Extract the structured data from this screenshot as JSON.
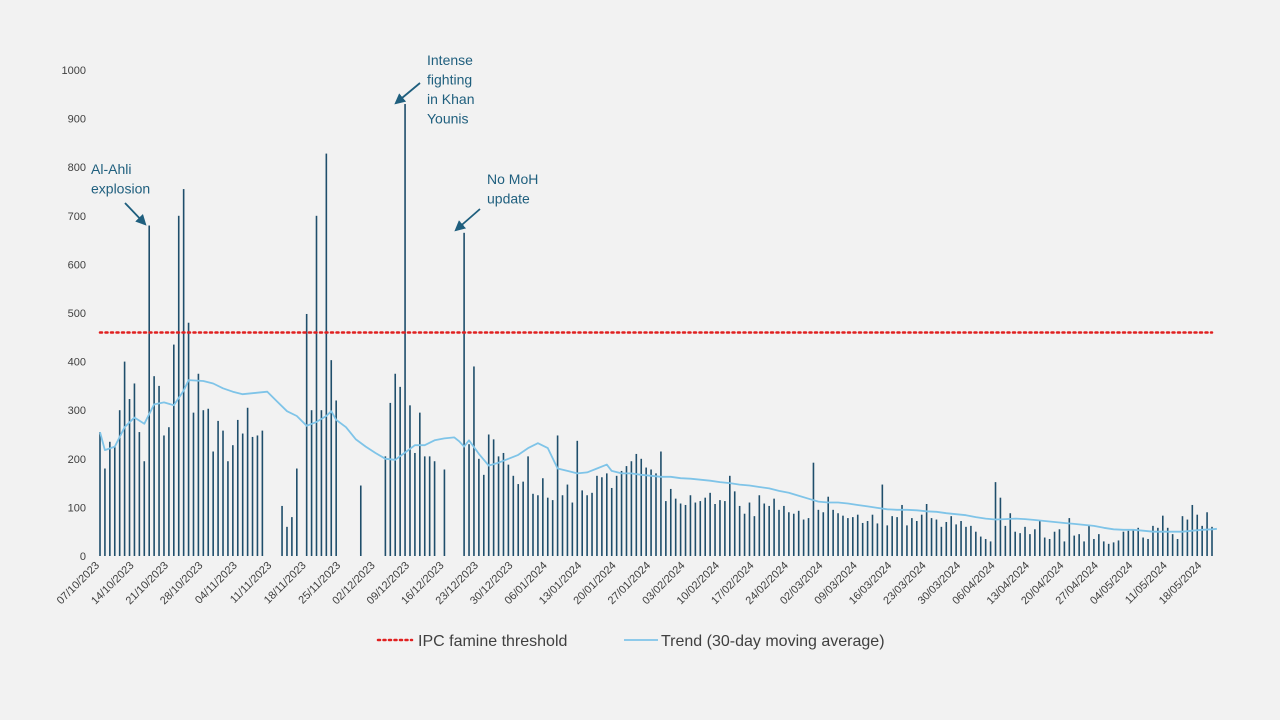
{
  "chart_data": {
    "type": "bar",
    "title": "",
    "xlabel": "",
    "ylabel": "",
    "ylim": [
      0,
      1000
    ],
    "yticks": [
      0,
      100,
      200,
      300,
      400,
      500,
      600,
      700,
      800,
      900,
      1000
    ],
    "x_start": "07/10/2023",
    "x_end": "24/05/2024",
    "x_tick_labels": [
      "07/10/2023",
      "14/10/2023",
      "21/10/2023",
      "28/10/2023",
      "04/11/2023",
      "11/11/2023",
      "18/11/2023",
      "25/11/2023",
      "02/12/2023",
      "09/12/2023",
      "16/12/2023",
      "23/12/2023",
      "30/12/2023",
      "06/01/2024",
      "13/01/2024",
      "20/01/2024",
      "27/01/2024",
      "03/02/2024",
      "10/02/2024",
      "17/02/2024",
      "24/02/2024",
      "02/03/2024",
      "09/03/2024",
      "16/03/2024",
      "23/03/2024",
      "30/03/2024",
      "06/04/2024",
      "13/04/2024",
      "20/04/2024",
      "27/04/2024",
      "04/05/2024",
      "11/05/2024",
      "18/05/2024"
    ],
    "bar_color": "#1f4e6b",
    "daily_values": [
      255,
      180,
      235,
      225,
      300,
      400,
      323,
      355,
      255,
      195,
      680,
      370,
      350,
      248,
      265,
      435,
      700,
      755,
      480,
      295,
      375,
      300,
      303,
      215,
      278,
      258,
      195,
      228,
      280,
      252,
      305,
      245,
      248,
      258,
      null,
      null,
      null,
      103,
      60,
      80,
      180,
      null,
      498,
      300,
      700,
      300,
      828,
      403,
      320,
      null,
      null,
      null,
      null,
      145,
      null,
      null,
      null,
      null,
      205,
      315,
      375,
      348,
      930,
      310,
      212,
      295,
      205,
      205,
      195,
      null,
      178,
      null,
      null,
      null,
      665,
      230,
      390,
      200,
      167,
      250,
      240,
      205,
      212,
      188,
      165,
      148,
      153,
      205,
      128,
      125,
      160,
      120,
      115,
      248,
      125,
      147,
      110,
      237,
      135,
      125,
      130,
      165,
      162,
      170,
      140,
      165,
      175,
      185,
      195,
      210,
      200,
      182,
      178,
      170,
      215,
      113,
      138,
      118,
      108,
      105,
      125,
      110,
      113,
      120,
      130,
      107,
      115,
      113,
      165,
      133,
      103,
      87,
      110,
      82,
      125,
      108,
      103,
      118,
      95,
      103,
      90,
      87,
      93,
      75,
      78,
      192,
      95,
      90,
      122,
      95,
      88,
      83,
      78,
      80,
      85,
      68,
      72,
      85,
      67,
      147,
      63,
      82,
      80,
      105,
      63,
      78,
      72,
      85,
      107,
      78,
      75,
      60,
      70,
      82,
      65,
      72,
      60,
      62,
      50,
      40,
      35,
      30,
      152,
      120,
      62,
      88,
      50,
      47,
      60,
      45,
      55,
      72,
      38,
      35,
      50,
      55,
      30,
      78,
      42,
      45,
      30,
      63,
      35,
      45,
      30,
      25,
      28,
      32,
      50,
      52,
      55,
      58,
      38,
      35,
      62,
      58,
      83,
      58,
      45,
      35,
      82,
      75,
      105,
      85,
      62,
      90,
      60
    ],
    "series": [
      {
        "name": "IPC famine threshold",
        "type": "line",
        "style": "dotted",
        "color": "#e02020",
        "value": 460
      },
      {
        "name": "Trend (30-day moving average)",
        "type": "line",
        "color": "#7fc4e8",
        "points": [
          [
            0,
            255
          ],
          [
            1,
            218
          ],
          [
            3,
            225
          ],
          [
            5,
            265
          ],
          [
            7,
            285
          ],
          [
            9,
            272
          ],
          [
            11,
            312
          ],
          [
            13,
            316
          ],
          [
            15,
            310
          ],
          [
            17,
            340
          ],
          [
            18,
            362
          ],
          [
            21,
            360
          ],
          [
            23,
            355
          ],
          [
            25,
            345
          ],
          [
            27,
            338
          ],
          [
            29,
            333
          ],
          [
            32,
            336
          ],
          [
            34,
            338
          ],
          [
            36,
            318
          ],
          [
            38,
            298
          ],
          [
            40,
            288
          ],
          [
            42,
            268
          ],
          [
            44,
            276
          ],
          [
            46,
            288
          ],
          [
            47,
            298
          ],
          [
            48,
            280
          ],
          [
            50,
            265
          ],
          [
            52,
            240
          ],
          [
            54,
            225
          ],
          [
            56,
            212
          ],
          [
            58,
            200
          ],
          [
            60,
            198
          ],
          [
            62,
            213
          ],
          [
            64,
            228
          ],
          [
            66,
            228
          ],
          [
            68,
            238
          ],
          [
            70,
            242
          ],
          [
            72,
            244
          ],
          [
            73,
            236
          ],
          [
            74,
            225
          ],
          [
            75,
            238
          ],
          [
            77,
            210
          ],
          [
            79,
            186
          ],
          [
            81,
            192
          ],
          [
            83,
            200
          ],
          [
            85,
            208
          ],
          [
            87,
            222
          ],
          [
            89,
            232
          ],
          [
            91,
            222
          ],
          [
            93,
            180
          ],
          [
            95,
            175
          ],
          [
            97,
            170
          ],
          [
            99,
            172
          ],
          [
            101,
            180
          ],
          [
            103,
            188
          ],
          [
            104,
            175
          ],
          [
            106,
            170
          ],
          [
            108,
            170
          ],
          [
            110,
            167
          ],
          [
            112,
            165
          ],
          [
            114,
            163
          ],
          [
            116,
            163
          ],
          [
            118,
            160
          ],
          [
            120,
            159
          ],
          [
            122,
            157
          ],
          [
            124,
            155
          ],
          [
            126,
            152
          ],
          [
            128,
            150
          ],
          [
            130,
            147
          ],
          [
            132,
            145
          ],
          [
            134,
            142
          ],
          [
            136,
            139
          ],
          [
            138,
            134
          ],
          [
            140,
            130
          ],
          [
            142,
            124
          ],
          [
            144,
            118
          ],
          [
            146,
            112
          ],
          [
            148,
            110
          ],
          [
            150,
            110
          ],
          [
            152,
            108
          ],
          [
            154,
            105
          ],
          [
            156,
            102
          ],
          [
            158,
            99
          ],
          [
            160,
            96
          ],
          [
            162,
            95
          ],
          [
            164,
            95
          ],
          [
            166,
            94
          ],
          [
            168,
            92
          ],
          [
            170,
            91
          ],
          [
            172,
            88
          ],
          [
            174,
            86
          ],
          [
            176,
            84
          ],
          [
            178,
            80
          ],
          [
            180,
            77
          ],
          [
            182,
            75
          ],
          [
            184,
            76
          ],
          [
            186,
            77
          ],
          [
            188,
            76
          ],
          [
            190,
            74
          ],
          [
            192,
            72
          ],
          [
            194,
            70
          ],
          [
            196,
            68
          ],
          [
            198,
            66
          ],
          [
            200,
            64
          ],
          [
            202,
            62
          ],
          [
            204,
            58
          ],
          [
            206,
            55
          ],
          [
            208,
            54
          ],
          [
            210,
            54
          ],
          [
            212,
            52
          ],
          [
            214,
            50
          ],
          [
            216,
            50
          ],
          [
            218,
            50
          ],
          [
            220,
            50
          ],
          [
            222,
            52
          ],
          [
            224,
            54
          ],
          [
            226,
            55
          ],
          [
            227,
            56
          ]
        ]
      }
    ],
    "annotations": [
      {
        "id": "al-ahli",
        "lines": [
          "Al-Ahli",
          "explosion"
        ],
        "day": 10
      },
      {
        "id": "khan-younis",
        "lines": [
          "Intense",
          "fighting",
          "in Khan",
          "Younis"
        ],
        "day": 62
      },
      {
        "id": "no-moh",
        "lines": [
          "No MoH",
          "update"
        ],
        "day": 74
      }
    ],
    "legend": {
      "placement": "bottom",
      "items": [
        {
          "label": "IPC famine threshold",
          "style": "dotted",
          "color": "#e02020"
        },
        {
          "label": "Trend (30-day moving average)",
          "style": "solid",
          "color": "#7fc4e8"
        }
      ]
    },
    "grid": false
  }
}
